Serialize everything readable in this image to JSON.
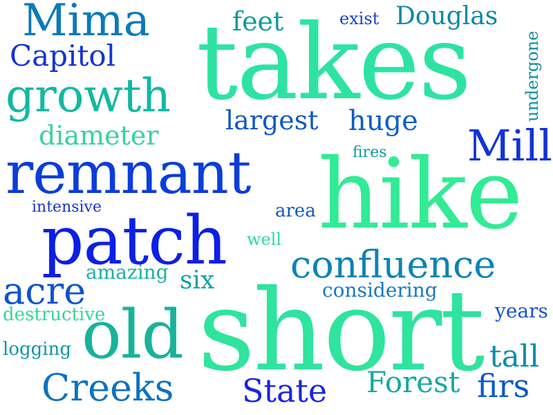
{
  "words": [
    {
      "text": "Mima",
      "color": "#0b7ab8"
    },
    {
      "text": "takes",
      "color": "#2ee3a2"
    },
    {
      "text": "feet",
      "color": "#0a9a9e"
    },
    {
      "text": "exist",
      "color": "#1a3fd0"
    },
    {
      "text": "Douglas",
      "color": "#0a88a8"
    },
    {
      "text": "undergone",
      "color": "#0a8fa0"
    },
    {
      "text": "Capitol",
      "color": "#1433d6"
    },
    {
      "text": "growth",
      "color": "#14b8a2"
    },
    {
      "text": "largest",
      "color": "#1157c6"
    },
    {
      "text": "huge",
      "color": "#0e5ec7"
    },
    {
      "text": "diameter",
      "color": "#3ad29a"
    },
    {
      "text": "Mill",
      "color": "#1033d8"
    },
    {
      "text": "fires",
      "color": "#0b9aa0"
    },
    {
      "text": "remnant",
      "color": "#0b3ed8"
    },
    {
      "text": "hike",
      "color": "#31eb95"
    },
    {
      "text": "intensive",
      "color": "#1a32d0"
    },
    {
      "text": "area",
      "color": "#1458c4"
    },
    {
      "text": "patch",
      "color": "#0c1fe6"
    },
    {
      "text": "well",
      "color": "#33d69a"
    },
    {
      "text": "confluence",
      "color": "#0b84b4"
    },
    {
      "text": "amazing",
      "color": "#1ab2a4"
    },
    {
      "text": "six",
      "color": "#11a3a6"
    },
    {
      "text": "acre",
      "color": "#0d52d0"
    },
    {
      "text": "considering",
      "color": "#1a78c4"
    },
    {
      "text": "destructive",
      "color": "#34d796"
    },
    {
      "text": "old",
      "color": "#18b39a"
    },
    {
      "text": "short",
      "color": "#2ee49e"
    },
    {
      "text": "years",
      "color": "#1352d2"
    },
    {
      "text": "logging",
      "color": "#0e96a6"
    },
    {
      "text": "tall",
      "color": "#0c8fa6"
    },
    {
      "text": "Creeks",
      "color": "#0d72bf"
    },
    {
      "text": "State",
      "color": "#1a24e0"
    },
    {
      "text": "Forest",
      "color": "#16a9a0"
    },
    {
      "text": "firs",
      "color": "#0e58c6"
    }
  ]
}
